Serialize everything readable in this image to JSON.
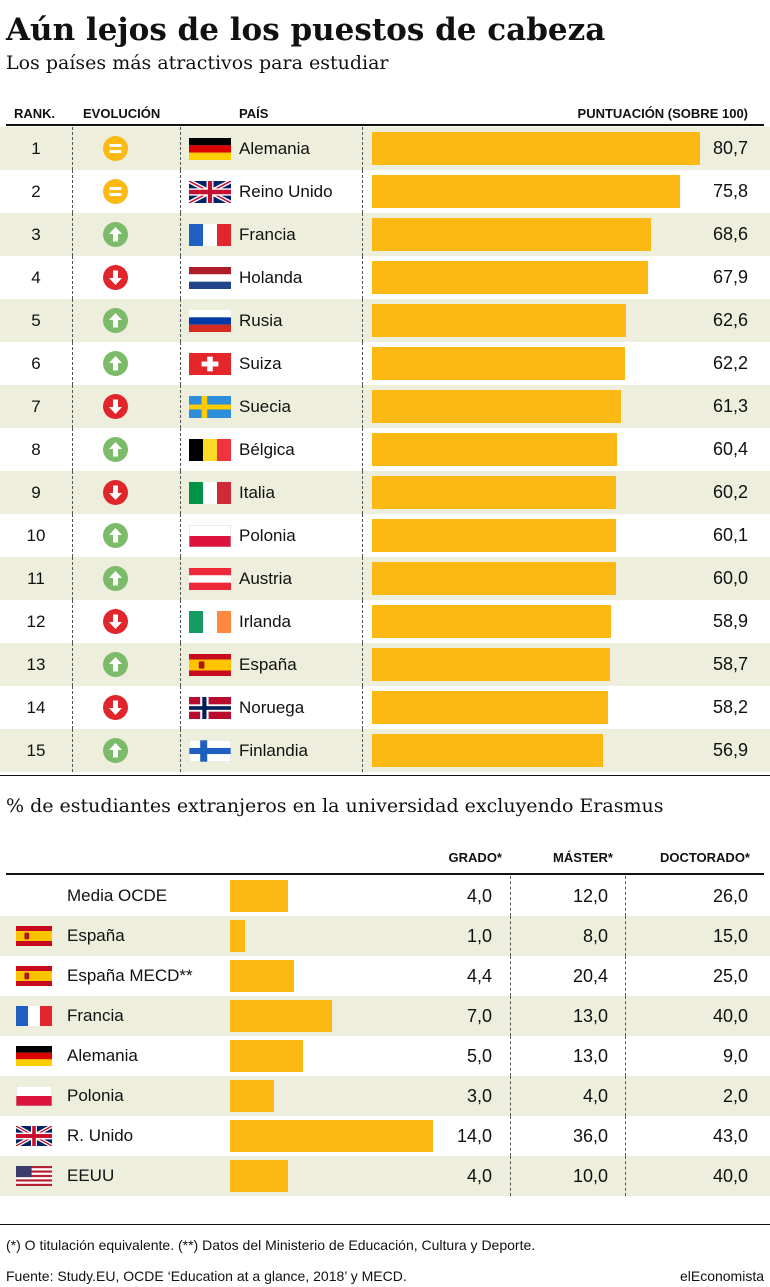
{
  "title": "Aún lejos de los puestos de cabeza",
  "subtitle": "Los países más atractivos para estudiar",
  "colors": {
    "bar": "#fcb813",
    "row_shade": "#eeeedd",
    "up": "#7bbb69",
    "down": "#e0252b",
    "equal": "#fcb813"
  },
  "headers": {
    "rank": "RANK.",
    "evolution": "EVOLUCIÓN",
    "country": "PAÍS",
    "score": "PUNTUACIÓN (SOBRE 100)"
  },
  "chart_data": [
    {
      "type": "bar",
      "title": "Los países más atractivos para estudiar",
      "ylim": [
        0,
        100
      ],
      "rows": [
        {
          "rank": "1",
          "evolution": "equal",
          "country": "Alemania",
          "flag": "germany-flag",
          "value": 80.7,
          "label": "80,7"
        },
        {
          "rank": "2",
          "evolution": "equal",
          "country": "Reino Unido",
          "flag": "uk-flag",
          "value": 75.8,
          "label": "75,8"
        },
        {
          "rank": "3",
          "evolution": "up",
          "country": "Francia",
          "flag": "france-flag",
          "value": 68.6,
          "label": "68,6"
        },
        {
          "rank": "4",
          "evolution": "down",
          "country": "Holanda",
          "flag": "netherlands-flag",
          "value": 67.9,
          "label": "67,9"
        },
        {
          "rank": "5",
          "evolution": "up",
          "country": "Rusia",
          "flag": "russia-flag",
          "value": 62.6,
          "label": "62,6"
        },
        {
          "rank": "6",
          "evolution": "up",
          "country": "Suiza",
          "flag": "switzerland-flag",
          "value": 62.2,
          "label": "62,2"
        },
        {
          "rank": "7",
          "evolution": "down",
          "country": "Suecia",
          "flag": "sweden-flag",
          "value": 61.3,
          "label": "61,3"
        },
        {
          "rank": "8",
          "evolution": "up",
          "country": "Bélgica",
          "flag": "belgium-flag",
          "value": 60.4,
          "label": "60,4"
        },
        {
          "rank": "9",
          "evolution": "down",
          "country": "Italia",
          "flag": "italy-flag",
          "value": 60.2,
          "label": "60,2"
        },
        {
          "rank": "10",
          "evolution": "up",
          "country": "Polonia",
          "flag": "poland-flag",
          "value": 60.1,
          "label": "60,1"
        },
        {
          "rank": "11",
          "evolution": "up",
          "country": "Austria",
          "flag": "austria-flag",
          "value": 60.0,
          "label": "60,0"
        },
        {
          "rank": "12",
          "evolution": "down",
          "country": "Irlanda",
          "flag": "ireland-flag",
          "value": 58.9,
          "label": "58,9"
        },
        {
          "rank": "13",
          "evolution": "up",
          "country": "España",
          "flag": "spain-flag",
          "value": 58.7,
          "label": "58,7"
        },
        {
          "rank": "14",
          "evolution": "down",
          "country": "Noruega",
          "flag": "norway-flag",
          "value": 58.2,
          "label": "58,2"
        },
        {
          "rank": "15",
          "evolution": "up",
          "country": "Finlandia",
          "flag": "finland-flag",
          "value": 56.9,
          "label": "56,9"
        }
      ]
    },
    {
      "type": "table",
      "title": "% de estudiantes extranjeros en la universidad excluyendo Erasmus",
      "columns": [
        "GRADO*",
        "MÁSTER*",
        "DOCTORADO*"
      ],
      "bar_column": "GRADO*",
      "rows": [
        {
          "country": "Media OCDE",
          "flag": "",
          "grado": 4.0,
          "master": 12.0,
          "doctorado": 26.0,
          "labels": [
            "4,0",
            "12,0",
            "26,0"
          ]
        },
        {
          "country": "España",
          "flag": "spain-flag",
          "grado": 1.0,
          "master": 8.0,
          "doctorado": 15.0,
          "labels": [
            "1,0",
            "8,0",
            "15,0"
          ]
        },
        {
          "country": "España MECD**",
          "flag": "spain-flag",
          "grado": 4.4,
          "master": 20.4,
          "doctorado": 25.0,
          "labels": [
            "4,4",
            "20,4",
            "25,0"
          ]
        },
        {
          "country": "Francia",
          "flag": "france-flag",
          "grado": 7.0,
          "master": 13.0,
          "doctorado": 40.0,
          "labels": [
            "7,0",
            "13,0",
            "40,0"
          ]
        },
        {
          "country": "Alemania",
          "flag": "germany-flag",
          "grado": 5.0,
          "master": 13.0,
          "doctorado": 9.0,
          "labels": [
            "5,0",
            "13,0",
            "9,0"
          ]
        },
        {
          "country": "Polonia",
          "flag": "poland-flag",
          "grado": 3.0,
          "master": 4.0,
          "doctorado": 2.0,
          "labels": [
            "3,0",
            "4,0",
            "2,0"
          ]
        },
        {
          "country": "R. Unido",
          "flag": "uk-flag",
          "grado": 14.0,
          "master": 36.0,
          "doctorado": 43.0,
          "labels": [
            "14,0",
            "36,0",
            "43,0"
          ]
        },
        {
          "country": "EEUU",
          "flag": "usa-flag",
          "grado": 4.0,
          "master": 10.0,
          "doctorado": 40.0,
          "labels": [
            "4,0",
            "10,0",
            "40,0"
          ]
        }
      ]
    }
  ],
  "footnote": "(*) O titulación equivalente. (**) Datos del Ministerio de Educación, Cultura y Deporte.",
  "source": "Fuente: Study.EU, OCDE ‘Education at a glance, 2018’ y MECD.",
  "brand": "elEconomista"
}
